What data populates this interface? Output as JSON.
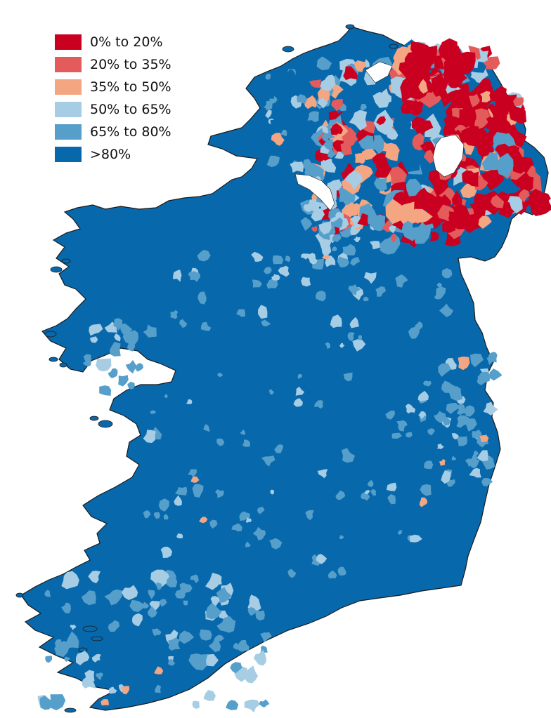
{
  "legend": {
    "items": [
      {
        "label": "0% to 20%",
        "color": "#ca0020"
      },
      {
        "label": "20% to 35%",
        "color": "#e35b5b"
      },
      {
        "label": "35% to 50%",
        "color": "#f4a582"
      },
      {
        "label": "50% to 65%",
        "color": "#a6cde3"
      },
      {
        "label": "65% to 80%",
        "color": "#569fcb"
      },
      {
        "label": ">80%",
        "color": "#0868ac"
      }
    ]
  },
  "map": {
    "region": "Ireland",
    "base_color": "#0868ac",
    "border_color": "#1a1a1a",
    "water_color": "#ffffff"
  }
}
